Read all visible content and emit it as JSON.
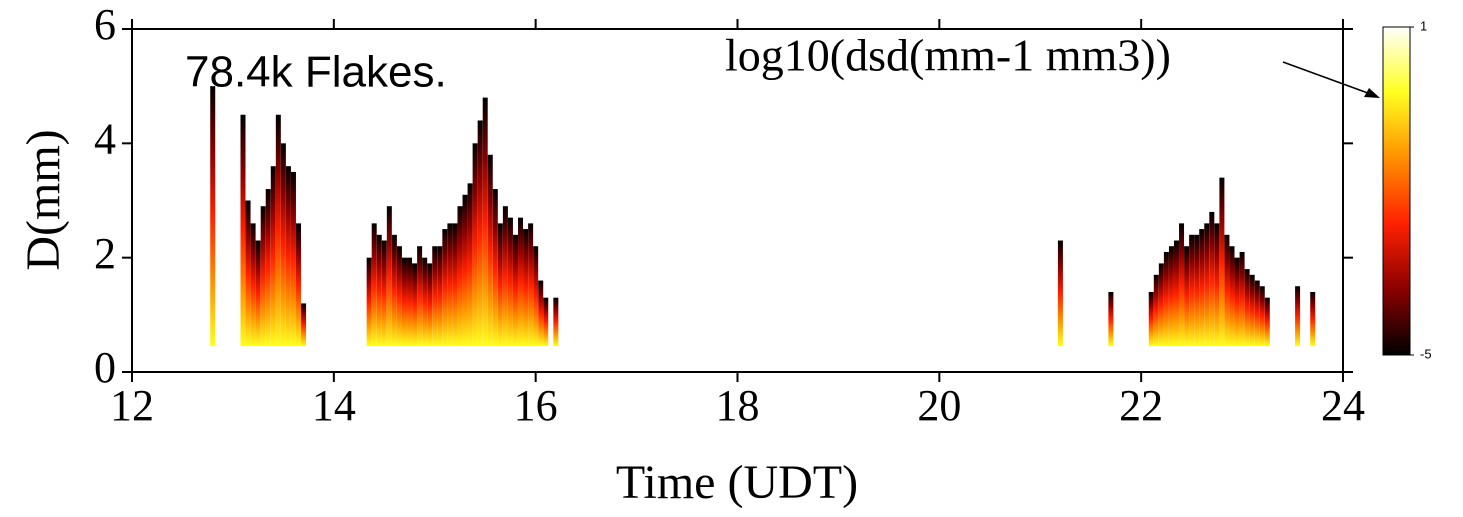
{
  "chart_data": {
    "type": "heatmap",
    "annotation": "78.4k Flakes.",
    "colorbar_label": "log10(dsd(mm-1 mm3))",
    "xlabel": "Time (UDT)",
    "ylabel": "D(mm)",
    "xlim": [
      12,
      24
    ],
    "xticks": [
      12,
      14,
      16,
      18,
      20,
      22,
      24
    ],
    "ylim": [
      0,
      6
    ],
    "yticks": [
      0,
      2,
      4,
      6
    ],
    "d_min": 0.45,
    "colormap": [
      "#000000",
      "#8b0000",
      "#ff2000",
      "#ff9000",
      "#ffff20",
      "#ffffff"
    ],
    "clim": [
      -5,
      1
    ],
    "cticks": [
      -5,
      1
    ],
    "x": [
      12.8,
      13.1,
      13.15,
      13.2,
      13.25,
      13.3,
      13.35,
      13.4,
      13.45,
      13.5,
      13.55,
      13.6,
      13.65,
      13.7,
      14.35,
      14.4,
      14.45,
      14.5,
      14.55,
      14.6,
      14.65,
      14.7,
      14.75,
      14.8,
      14.85,
      14.9,
      14.95,
      15.0,
      15.05,
      15.1,
      15.15,
      15.2,
      15.25,
      15.3,
      15.35,
      15.4,
      15.45,
      15.5,
      15.55,
      15.6,
      15.65,
      15.7,
      15.75,
      15.8,
      15.85,
      15.9,
      15.95,
      16.0,
      16.05,
      16.1,
      16.2,
      21.2,
      21.7,
      22.1,
      22.15,
      22.2,
      22.25,
      22.3,
      22.35,
      22.4,
      22.45,
      22.5,
      22.55,
      22.6,
      22.65,
      22.7,
      22.75,
      22.8,
      22.85,
      22.9,
      22.95,
      23.0,
      23.05,
      23.1,
      23.15,
      23.2,
      23.25,
      23.55,
      23.7
    ],
    "values": [
      5.0,
      4.5,
      3.0,
      2.6,
      2.3,
      2.9,
      3.2,
      3.6,
      4.5,
      4.0,
      3.6,
      3.5,
      2.6,
      1.2,
      2.0,
      2.6,
      2.4,
      2.3,
      2.9,
      2.4,
      2.2,
      2.0,
      2.0,
      1.9,
      2.2,
      2.0,
      1.9,
      2.2,
      2.2,
      2.5,
      2.6,
      2.6,
      2.9,
      3.1,
      3.3,
      4.0,
      4.4,
      4.8,
      3.8,
      3.2,
      2.6,
      2.9,
      2.7,
      2.4,
      2.7,
      2.5,
      2.6,
      2.2,
      1.6,
      1.3,
      1.3,
      2.3,
      1.4,
      1.4,
      1.7,
      1.9,
      2.1,
      2.2,
      2.3,
      2.6,
      2.2,
      2.4,
      2.4,
      2.5,
      2.6,
      2.8,
      2.6,
      3.4,
      2.4,
      2.2,
      2.0,
      2.1,
      1.8,
      1.7,
      1.6,
      1.5,
      1.3,
      1.5,
      1.4
    ]
  }
}
